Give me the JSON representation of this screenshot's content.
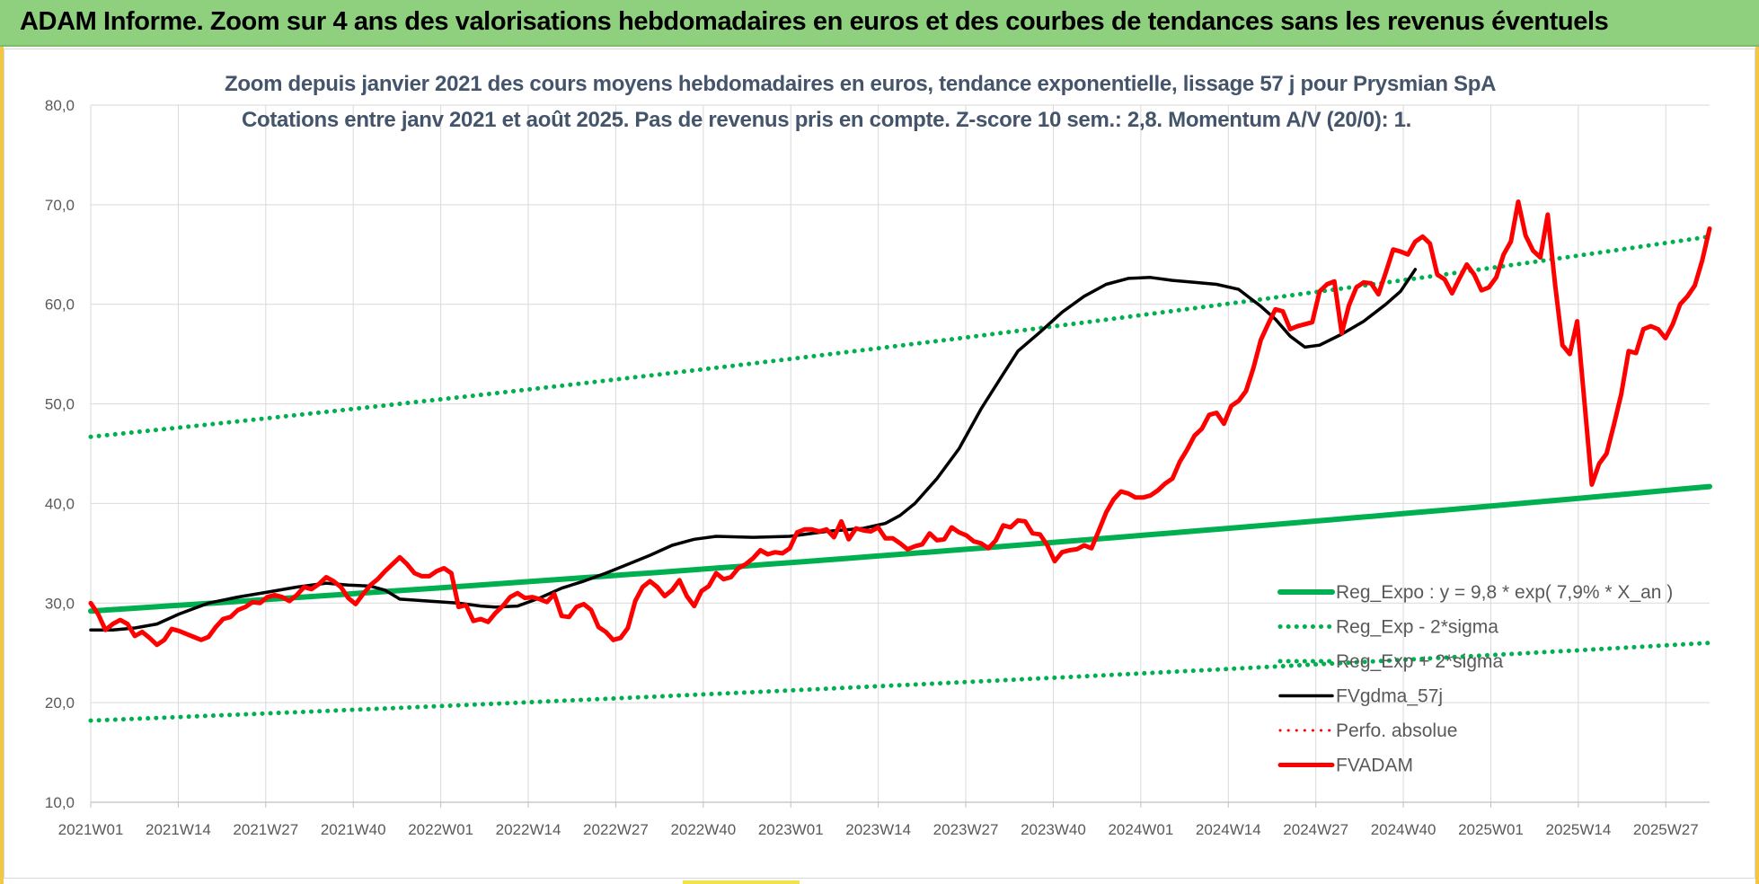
{
  "banner": {
    "title": "ADAM Informe. Zoom sur 4 ans des valorisations hebdomadaires en euros et des courbes de tendances sans les revenus éventuels"
  },
  "chart_data": {
    "type": "line",
    "title_line1": "Zoom depuis janvier 2021 des cours moyens hebdomadaires en euros, tendance exponentielle, lissage 57 j pour Prysmian SpA",
    "title_line2": "Cotations entre janv 2021 et août 2025.  Pas de revenus pris en compte. Z-score 10 sem.: 2,8. Momentum A/V (20/0): 1.",
    "ylim": [
      10,
      80
    ],
    "yticks": [
      "10,0",
      "20,0",
      "30,0",
      "40,0",
      "50,0",
      "60,0",
      "70,0",
      "80,0"
    ],
    "ytick_values": [
      10,
      20,
      30,
      40,
      50,
      60,
      70,
      80
    ],
    "x_count": 241,
    "x_tick_labels": [
      "2021W01",
      "2021W14",
      "2021W27",
      "2021W40",
      "2022W01",
      "2022W14",
      "2022W27",
      "2022W40",
      "2023W01",
      "2023W14",
      "2023W27",
      "2023W40",
      "2024W01",
      "2024W14",
      "2024W27",
      "2024W40",
      "2025W01",
      "2025W14",
      "2025W27"
    ],
    "x_tick_step": 13,
    "grid": true,
    "legend_position": "bottom-right",
    "series": [
      {
        "name": "Reg_Expo : y = 9,8 * exp( 7,9% *  X_an )",
        "style": "solid",
        "color": "#00b050",
        "width": 6,
        "kind": "exp",
        "start": 29.2,
        "end": 41.7
      },
      {
        "name": "Reg_Exp - 2*sigma",
        "style": "dotted",
        "color": "#00b050",
        "width": 5,
        "kind": "exp",
        "start": 18.2,
        "end": 26.0
      },
      {
        "name": "Reg_Exp + 2*sigma",
        "style": "dotted",
        "color": "#00b050",
        "width": 5,
        "kind": "exp",
        "start": 46.7,
        "end": 66.8
      },
      {
        "name": "FVgdma_57j",
        "style": "solid",
        "color": "#000000",
        "width": 3.5,
        "kind": "points",
        "points": [
          [
            0,
            27.3
          ],
          [
            6,
            27.3
          ],
          [
            12,
            27.5
          ],
          [
            18,
            27.9
          ],
          [
            24,
            28.9
          ],
          [
            32,
            30.0
          ],
          [
            40,
            30.6
          ],
          [
            48,
            31.1
          ],
          [
            56,
            31.6
          ],
          [
            64,
            32.0
          ],
          [
            70,
            31.8
          ],
          [
            76,
            31.7
          ],
          [
            80,
            31.3
          ],
          [
            84,
            30.4
          ],
          [
            92,
            30.2
          ],
          [
            100,
            30.0
          ],
          [
            106,
            29.7
          ],
          [
            110,
            29.6
          ],
          [
            116,
            29.7
          ],
          [
            122,
            30.5
          ],
          [
            128,
            31.5
          ],
          [
            134,
            32.2
          ],
          [
            140,
            33.0
          ],
          [
            146,
            33.9
          ],
          [
            152,
            34.8
          ],
          [
            158,
            35.8
          ],
          [
            164,
            36.4
          ],
          [
            170,
            36.7
          ],
          [
            180,
            36.6
          ],
          [
            190,
            36.7
          ],
          [
            200,
            37.2
          ],
          [
            210,
            37.5
          ],
          [
            216,
            38.0
          ],
          [
            220,
            38.8
          ],
          [
            224,
            40.0
          ],
          [
            230,
            42.5
          ],
          [
            236,
            45.5
          ],
          [
            242,
            49.5
          ],
          [
            248,
            53.0
          ],
          [
            252,
            55.3
          ],
          [
            258,
            57.2
          ],
          [
            264,
            59.2
          ],
          [
            270,
            60.8
          ],
          [
            276,
            62.0
          ],
          [
            282,
            62.6
          ],
          [
            288,
            62.7
          ],
          [
            294,
            62.4
          ],
          [
            300,
            62.2
          ],
          [
            306,
            62.0
          ],
          [
            312,
            61.5
          ],
          [
            318,
            59.8
          ],
          [
            322,
            58.5
          ],
          [
            326,
            56.8
          ],
          [
            330,
            55.7
          ],
          [
            334,
            55.9
          ],
          [
            340,
            57.0
          ],
          [
            346,
            58.3
          ],
          [
            352,
            60.0
          ],
          [
            356,
            61.3
          ],
          [
            360,
            63.5
          ]
        ]
      },
      {
        "name": "Perfo. absolue",
        "style": "dotted",
        "color": "#ff0000",
        "width": 3,
        "kind": "none"
      },
      {
        "name": "FVADAM",
        "style": "solid",
        "color": "#ff0000",
        "width": 5,
        "kind": "points",
        "points": [
          [
            0,
            30.0
          ],
          [
            2,
            28.9
          ],
          [
            4,
            27.3
          ],
          [
            6,
            27.9
          ],
          [
            8,
            28.3
          ],
          [
            10,
            27.9
          ],
          [
            12,
            26.7
          ],
          [
            14,
            27.1
          ],
          [
            16,
            26.5
          ],
          [
            18,
            25.8
          ],
          [
            20,
            26.3
          ],
          [
            22,
            27.4
          ],
          [
            24,
            27.2
          ],
          [
            26,
            26.9
          ],
          [
            28,
            26.6
          ],
          [
            30,
            26.3
          ],
          [
            32,
            26.6
          ],
          [
            34,
            27.6
          ],
          [
            36,
            28.4
          ],
          [
            38,
            28.6
          ],
          [
            40,
            29.3
          ],
          [
            42,
            29.6
          ],
          [
            44,
            30.1
          ],
          [
            46,
            30.0
          ],
          [
            48,
            30.6
          ],
          [
            50,
            30.8
          ],
          [
            52,
            30.6
          ],
          [
            54,
            30.2
          ],
          [
            56,
            30.8
          ],
          [
            58,
            31.6
          ],
          [
            60,
            31.4
          ],
          [
            62,
            31.9
          ],
          [
            64,
            32.6
          ],
          [
            66,
            32.2
          ],
          [
            68,
            31.6
          ],
          [
            70,
            30.5
          ],
          [
            72,
            29.9
          ],
          [
            74,
            30.9
          ],
          [
            76,
            31.8
          ],
          [
            78,
            32.4
          ],
          [
            80,
            33.2
          ],
          [
            82,
            33.9
          ],
          [
            84,
            34.6
          ],
          [
            86,
            33.9
          ],
          [
            88,
            33.0
          ],
          [
            90,
            32.7
          ],
          [
            92,
            32.7
          ],
          [
            94,
            33.2
          ],
          [
            96,
            33.5
          ],
          [
            98,
            33.0
          ],
          [
            100,
            29.6
          ],
          [
            102,
            29.8
          ],
          [
            104,
            28.2
          ],
          [
            106,
            28.4
          ],
          [
            108,
            28.1
          ],
          [
            110,
            29.0
          ],
          [
            112,
            29.7
          ],
          [
            114,
            30.6
          ],
          [
            116,
            31.0
          ],
          [
            118,
            30.5
          ],
          [
            120,
            30.6
          ],
          [
            122,
            30.4
          ],
          [
            124,
            30.1
          ],
          [
            126,
            30.9
          ],
          [
            128,
            28.7
          ],
          [
            130,
            28.6
          ],
          [
            132,
            29.6
          ],
          [
            134,
            29.9
          ],
          [
            136,
            29.3
          ],
          [
            138,
            27.6
          ],
          [
            140,
            27.1
          ],
          [
            142,
            26.3
          ],
          [
            144,
            26.5
          ],
          [
            146,
            27.5
          ],
          [
            148,
            30.2
          ],
          [
            150,
            31.6
          ],
          [
            152,
            32.2
          ],
          [
            154,
            31.6
          ],
          [
            156,
            30.7
          ],
          [
            158,
            31.3
          ],
          [
            160,
            32.3
          ],
          [
            162,
            30.7
          ],
          [
            164,
            29.7
          ],
          [
            166,
            31.2
          ],
          [
            168,
            31.7
          ],
          [
            170,
            33.0
          ],
          [
            172,
            32.4
          ],
          [
            174,
            32.6
          ],
          [
            176,
            33.5
          ],
          [
            178,
            33.9
          ],
          [
            180,
            34.5
          ],
          [
            182,
            35.3
          ],
          [
            184,
            34.9
          ],
          [
            186,
            35.1
          ],
          [
            188,
            35.0
          ],
          [
            190,
            35.5
          ],
          [
            192,
            37.1
          ],
          [
            194,
            37.4
          ],
          [
            196,
            37.4
          ],
          [
            198,
            37.2
          ],
          [
            200,
            37.4
          ],
          [
            202,
            36.6
          ],
          [
            204,
            38.2
          ],
          [
            206,
            36.4
          ],
          [
            208,
            37.5
          ],
          [
            210,
            37.3
          ],
          [
            212,
            37.2
          ],
          [
            214,
            37.6
          ],
          [
            216,
            36.5
          ],
          [
            218,
            36.5
          ],
          [
            220,
            36.0
          ],
          [
            222,
            35.4
          ],
          [
            224,
            35.7
          ],
          [
            226,
            35.9
          ],
          [
            228,
            37.0
          ],
          [
            230,
            36.3
          ],
          [
            232,
            36.4
          ],
          [
            234,
            37.6
          ],
          [
            236,
            37.1
          ],
          [
            238,
            36.8
          ],
          [
            240,
            36.2
          ],
          [
            242,
            36.0
          ],
          [
            244,
            35.5
          ],
          [
            246,
            36.3
          ],
          [
            248,
            37.8
          ],
          [
            250,
            37.6
          ],
          [
            252,
            38.3
          ],
          [
            254,
            38.2
          ],
          [
            256,
            37.0
          ],
          [
            258,
            36.9
          ],
          [
            260,
            35.8
          ],
          [
            262,
            34.2
          ],
          [
            264,
            35.1
          ],
          [
            266,
            35.3
          ],
          [
            268,
            35.4
          ],
          [
            270,
            35.8
          ],
          [
            272,
            35.5
          ],
          [
            274,
            37.3
          ],
          [
            276,
            39.1
          ],
          [
            278,
            40.4
          ],
          [
            280,
            41.2
          ],
          [
            282,
            41.0
          ],
          [
            284,
            40.6
          ],
          [
            286,
            40.6
          ],
          [
            288,
            40.8
          ],
          [
            290,
            41.3
          ],
          [
            292,
            42.0
          ],
          [
            294,
            42.5
          ],
          [
            296,
            44.2
          ],
          [
            298,
            45.4
          ],
          [
            300,
            46.8
          ],
          [
            302,
            47.5
          ],
          [
            304,
            48.9
          ],
          [
            306,
            49.1
          ],
          [
            308,
            48.0
          ],
          [
            310,
            49.8
          ],
          [
            312,
            50.3
          ],
          [
            314,
            51.3
          ],
          [
            316,
            53.6
          ],
          [
            318,
            56.4
          ],
          [
            320,
            58.0
          ],
          [
            322,
            59.5
          ],
          [
            324,
            59.3
          ],
          [
            326,
            57.5
          ],
          [
            328,
            57.8
          ],
          [
            330,
            58.0
          ],
          [
            332,
            58.2
          ],
          [
            334,
            61.3
          ],
          [
            336,
            62.0
          ],
          [
            338,
            62.3
          ],
          [
            340,
            57.1
          ],
          [
            342,
            59.9
          ],
          [
            344,
            61.7
          ],
          [
            346,
            62.2
          ],
          [
            348,
            62.1
          ],
          [
            350,
            61.0
          ],
          [
            352,
            63.2
          ],
          [
            354,
            65.5
          ],
          [
            356,
            65.3
          ],
          [
            358,
            65.0
          ],
          [
            360,
            66.3
          ],
          [
            362,
            66.8
          ],
          [
            364,
            66.1
          ],
          [
            366,
            63.0
          ],
          [
            368,
            62.5
          ],
          [
            370,
            61.1
          ],
          [
            372,
            62.6
          ],
          [
            374,
            64.0
          ],
          [
            376,
            63.0
          ],
          [
            378,
            61.4
          ],
          [
            380,
            61.7
          ],
          [
            382,
            62.7
          ],
          [
            384,
            65.0
          ],
          [
            386,
            66.3
          ],
          [
            388,
            70.3
          ],
          [
            390,
            66.9
          ],
          [
            392,
            65.4
          ],
          [
            394,
            64.7
          ],
          [
            396,
            69.0
          ],
          [
            398,
            62.0
          ],
          [
            400,
            55.9
          ],
          [
            402,
            55.0
          ],
          [
            404,
            58.3
          ],
          [
            406,
            50.1
          ],
          [
            408,
            41.9
          ],
          [
            410,
            44.0
          ],
          [
            412,
            45.0
          ],
          [
            414,
            47.9
          ],
          [
            416,
            51.0
          ],
          [
            418,
            55.3
          ],
          [
            420,
            55.1
          ],
          [
            422,
            57.5
          ],
          [
            424,
            57.8
          ],
          [
            426,
            57.5
          ],
          [
            428,
            56.6
          ],
          [
            430,
            58.0
          ],
          [
            432,
            60.0
          ],
          [
            434,
            60.8
          ],
          [
            436,
            61.9
          ],
          [
            438,
            64.4
          ],
          [
            440,
            67.6
          ]
        ]
      }
    ]
  }
}
